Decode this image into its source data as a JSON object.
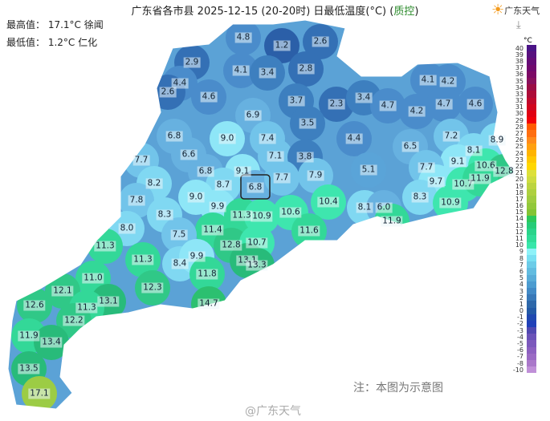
{
  "title": {
    "main": "广东省各市县 2025-12-15 (20-20时) 日最低温度(°C) (",
    "qc": "质控",
    ")": ")"
  },
  "stats": {
    "max": "最高值： 17.1°C 徐闻",
    "min": "最低值： 1.2°C 仁化"
  },
  "logo": {
    "text": "广东天气",
    "icon": "sun-cloud-logo-icon"
  },
  "download_icon": "download-icon",
  "note": "注：本图为示意图",
  "watermark": "@广东天气",
  "legend": {
    "unit": "°C",
    "labels": [
      "40",
      "39",
      "38",
      "37",
      "36",
      "35",
      "34",
      "33",
      "32",
      "31",
      "30",
      "29",
      "28",
      "27",
      "26",
      "25",
      "24",
      "23",
      "22",
      "21",
      "20",
      "19",
      "18",
      "17",
      "16",
      "15",
      "14",
      "13",
      "12",
      "11",
      "10",
      "9",
      "8",
      "7",
      "6",
      "5",
      "4",
      "3",
      "2",
      "1",
      "0",
      "-1",
      "-2",
      "-3",
      "-4",
      "-5",
      "-6",
      "-7",
      "-8",
      "-10"
    ],
    "colors": [
      "#4a1486",
      "#57107e",
      "#640c76",
      "#70096e",
      "#7c0966",
      "#88105c",
      "#9b0d45",
      "#ad0b38",
      "#c0082c",
      "#d2041e",
      "#e00012",
      "#f00008",
      "#ff5a00",
      "#ff6e10",
      "#ff8a1a",
      "#ffa010",
      "#ffb400",
      "#ffc800",
      "#ffd700",
      "#dde03a",
      "#cedc40",
      "#bcd440",
      "#aed040",
      "#a0cc40",
      "#92c83a",
      "#84c434",
      "#2cc85a",
      "#26cc78",
      "#2ad48a",
      "#30dc98",
      "#38e6aa",
      "#8ef2f8",
      "#78e0f2",
      "#6ccce8",
      "#62bce0",
      "#58acd8",
      "#4c9cd0",
      "#428ac6",
      "#3878b8",
      "#2e68aa",
      "#245aa6",
      "#2048b0",
      "#2040b8",
      "#5048b0",
      "#6a52b8",
      "#7c58bc",
      "#8c60c0",
      "#9a6ac4",
      "#aa78ca",
      "#c090d8"
    ]
  },
  "stations": [
    [
      "4.8",
      303,
      47
    ],
    [
      "1.2",
      351,
      57
    ],
    [
      "2.6",
      399,
      52
    ],
    [
      "2.9",
      239,
      78
    ],
    [
      "4.1",
      300,
      88
    ],
    [
      "3.4",
      333,
      91
    ],
    [
      "2.8",
      381,
      86
    ],
    [
      "4.4",
      224,
      104
    ],
    [
      "2.6",
      209,
      115
    ],
    [
      "4.6",
      260,
      121
    ],
    [
      "3.7",
      369,
      126
    ],
    [
      "2.3",
      419,
      130
    ],
    [
      "3.4",
      453,
      122
    ],
    [
      "4.7",
      483,
      132
    ],
    [
      "4.1",
      533,
      100
    ],
    [
      "4.2",
      558,
      102
    ],
    [
      "4.7",
      553,
      130
    ],
    [
      "4.6",
      592,
      130
    ],
    [
      "4.2",
      519,
      139
    ],
    [
      "6.9",
      315,
      144
    ],
    [
      "3.5",
      383,
      154
    ],
    [
      "9.0",
      283,
      173
    ],
    [
      "7.4",
      333,
      173
    ],
    [
      "4.4",
      441,
      173
    ],
    [
      "6.5",
      511,
      183
    ],
    [
      "7.2",
      562,
      170
    ],
    [
      "8.9",
      619,
      175
    ],
    [
      "6.8",
      217,
      170
    ],
    [
      "6.6",
      235,
      193
    ],
    [
      "7.1",
      343,
      195
    ],
    [
      "3.8",
      380,
      196
    ],
    [
      "8.1",
      590,
      188
    ],
    [
      "7.7",
      176,
      200
    ],
    [
      "9.1",
      570,
      202
    ],
    [
      "10.6",
      605,
      207
    ],
    [
      "12.8",
      628,
      214
    ],
    [
      "6.8",
      256,
      214
    ],
    [
      "9.1",
      302,
      214
    ],
    [
      "6.8",
      318,
      234
    ],
    [
      "7.7",
      351,
      222
    ],
    [
      "7.9",
      393,
      219
    ],
    [
      "5.1",
      459,
      212
    ],
    [
      "7.7",
      531,
      209
    ],
    [
      "8.2",
      192,
      229
    ],
    [
      "8.7",
      278,
      231
    ],
    [
      "9.7",
      543,
      227
    ],
    [
      "10.7",
      577,
      230
    ],
    [
      "11.9",
      598,
      223
    ],
    [
      "7.8",
      170,
      250
    ],
    [
      "9.0",
      244,
      246
    ],
    [
      "10.4",
      409,
      252
    ],
    [
      "8.3",
      523,
      246
    ],
    [
      "10.9",
      561,
      253
    ],
    [
      "9.9",
      271,
      258
    ],
    [
      "11.3",
      301,
      269
    ],
    [
      "10.6",
      362,
      265
    ],
    [
      "8.1",
      454,
      259
    ],
    [
      "6.0",
      478,
      259
    ],
    [
      "11.9",
      488,
      276
    ],
    [
      "8.3",
      205,
      268
    ],
    [
      "8.0",
      158,
      285
    ],
    [
      "11.4",
      265,
      287
    ],
    [
      "11.6",
      385,
      288
    ],
    [
      "7.5",
      223,
      293
    ],
    [
      "10.9",
      326,
      270
    ],
    [
      "12.8",
      288,
      306
    ],
    [
      "10.7",
      320,
      303
    ],
    [
      "11.3",
      131,
      307
    ],
    [
      "11.3",
      178,
      324
    ],
    [
      "8.4",
      224,
      329
    ],
    [
      "9.9",
      245,
      320
    ],
    [
      "13.1",
      308,
      325
    ],
    [
      "13.3",
      320,
      331
    ],
    [
      "11.8",
      258,
      342
    ],
    [
      "11.0",
      116,
      347
    ],
    [
      "12.1",
      78,
      363
    ],
    [
      "12.3",
      190,
      359
    ],
    [
      "13.1",
      135,
      376
    ],
    [
      "11.3",
      108,
      384
    ],
    [
      "14.7",
      260,
      379
    ],
    [
      "12.6",
      43,
      381
    ],
    [
      "12.2",
      92,
      400
    ],
    [
      "11.9",
      36,
      419
    ],
    [
      "13.4",
      64,
      427
    ],
    [
      "13.5",
      36,
      460
    ],
    [
      "17.1",
      49,
      491
    ]
  ]
}
